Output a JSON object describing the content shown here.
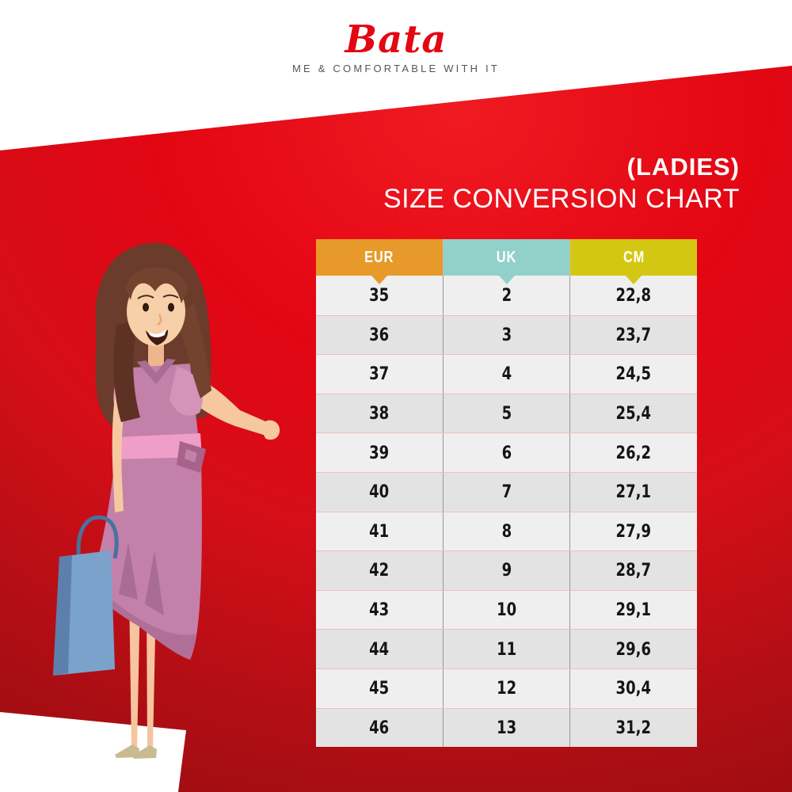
{
  "brand": {
    "name": "Bata",
    "tagline": "ME & COMFORTABLE WITH IT",
    "color": "#E30613"
  },
  "title": {
    "category": "(LADIES)",
    "heading": "SIZE CONVERSION CHART"
  },
  "chart_data": {
    "type": "table",
    "title": "(LADIES) SIZE CONVERSION CHART",
    "columns": [
      {
        "label": "EUR",
        "color": "#E79A2A"
      },
      {
        "label": "UK",
        "color": "#92D1CA"
      },
      {
        "label": "CM",
        "color": "#D4C713"
      }
    ],
    "rows": [
      [
        "35",
        "2",
        "22,8"
      ],
      [
        "36",
        "3",
        "23,7"
      ],
      [
        "37",
        "4",
        "24,5"
      ],
      [
        "38",
        "5",
        "25,4"
      ],
      [
        "39",
        "6",
        "26,2"
      ],
      [
        "40",
        "7",
        "27,1"
      ],
      [
        "41",
        "8",
        "27,9"
      ],
      [
        "42",
        "9",
        "28,7"
      ],
      [
        "43",
        "10",
        "29,1"
      ],
      [
        "44",
        "11",
        "29,6"
      ],
      [
        "45",
        "12",
        "30,4"
      ],
      [
        "46",
        "13",
        "31,2"
      ]
    ]
  },
  "colors": {
    "brand_red": "#E30613",
    "red_dark": "#870A0E",
    "row_light": "#F0EFEF",
    "row_dark": "#E4E3E3",
    "tagline_gray": "#56565A",
    "header_text": "#FFFFFF",
    "cell_text": "#151515"
  },
  "illustration": {
    "description": "cartoon woman in pink dress holding blue shopping bag, arm extended toward chart"
  }
}
